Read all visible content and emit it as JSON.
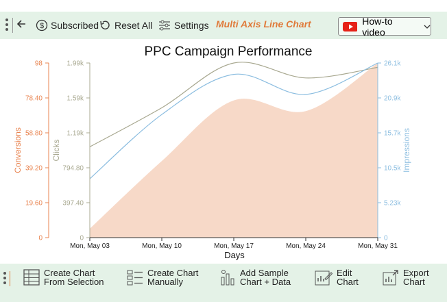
{
  "toolbar": {
    "subscribed_label": "Subscribed",
    "reset_label": "Reset All",
    "settings_label": "Settings",
    "chart_name": "Multi Axis Line Chart",
    "howto_label": "How-to video"
  },
  "bottom_toolbar": {
    "create_selection": [
      "Create Chart",
      "From Selection"
    ],
    "create_manual": [
      "Create Chart",
      "Manually"
    ],
    "add_sample": [
      "Add Sample",
      "Chart + Data"
    ],
    "edit_chart": [
      "Edit",
      "Chart"
    ],
    "export_chart": [
      "Export",
      "Chart"
    ]
  },
  "colors": {
    "conversions": "#e8834f",
    "conversions_fill": "#f7d9c8",
    "clicks": "#a8a890",
    "impressions": "#8bbde0",
    "toolbar_bg": "#e4f2e7",
    "accent": "#e07a3a"
  },
  "chart_data": {
    "type": "line",
    "title": "PPC Campaign Performance",
    "xlabel": "Days",
    "x": [
      "Mon, May 03",
      "Mon, May 10",
      "Mon, May 17",
      "Mon, May 24",
      "Mon, May 31"
    ],
    "series": [
      {
        "name": "Conversions",
        "axis": "left-outer",
        "style": "area",
        "values": [
          5,
          43,
          77,
          71,
          98
        ]
      },
      {
        "name": "Clicks",
        "axis": "left-inner",
        "style": "line",
        "values": [
          1035,
          1480,
          1990,
          1820,
          1940
        ]
      },
      {
        "name": "Impressions",
        "axis": "right",
        "style": "line",
        "values": [
          8800,
          18400,
          24400,
          21400,
          26100
        ]
      }
    ],
    "axes": {
      "conversions": {
        "label": "Conversions",
        "ylim": [
          0,
          98
        ],
        "ticks": [
          "0",
          "19.60",
          "39.20",
          "58.80",
          "78.40",
          "98"
        ]
      },
      "clicks": {
        "label": "Clicks",
        "ylim": [
          0,
          1990
        ],
        "ticks": [
          "0",
          "397.40",
          "794.80",
          "1.19k",
          "1.59k",
          "1.99k"
        ]
      },
      "impressions": {
        "label": "Impressions",
        "ylim": [
          0,
          26100
        ],
        "ticks": [
          "0",
          "5.23k",
          "10.5k",
          "15.7k",
          "20.9k",
          "26.1k"
        ]
      }
    },
    "grid": false,
    "legend": "none"
  }
}
